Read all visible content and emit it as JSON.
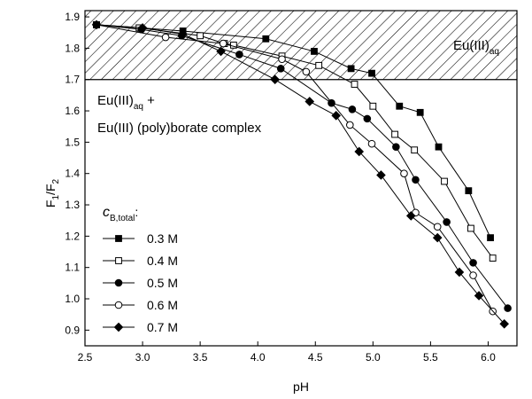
{
  "chart_data": {
    "type": "scatter",
    "title": "",
    "xlabel": "pH",
    "ylabel": {
      "main": "F",
      "sub1": "1",
      "slash": "/F",
      "sub2": "2"
    },
    "xlim": [
      2.5,
      6.25
    ],
    "ylim": [
      0.85,
      1.92
    ],
    "x_ticks": [
      2.5,
      3.0,
      3.5,
      4.0,
      4.5,
      5.0,
      5.5,
      6.0
    ],
    "x_tick_labels": [
      "2.5",
      "3.0",
      "3.5",
      "4.0",
      "4.5",
      "5.0",
      "5.5",
      "6.0"
    ],
    "y_ticks": [
      0.9,
      1.0,
      1.1,
      1.2,
      1.3,
      1.4,
      1.5,
      1.6,
      1.7,
      1.8,
      1.9
    ],
    "y_tick_labels": [
      "0.9",
      "1.0",
      "1.1",
      "1.2",
      "1.3",
      "1.4",
      "1.5",
      "1.6",
      "1.7",
      "1.8",
      "1.9"
    ],
    "grid": false,
    "regions": [
      {
        "name": "hatched-region",
        "y_from": 1.7,
        "y_to": 1.92,
        "fill": "hatched"
      }
    ],
    "region_labels": {
      "upper": {
        "main": "Eu(III)",
        "sub": "aq"
      },
      "lower_line1": {
        "main": "Eu(III)",
        "sub": "aq",
        "tail": " +"
      },
      "lower_line2": "Eu(III) (poly)borate complex"
    },
    "legend": {
      "title": {
        "main": "c",
        "sub": "B,total",
        "tail": ":"
      },
      "placement": "lower-left"
    },
    "series": [
      {
        "name": "0.3 M",
        "marker": "square-filled",
        "points": [
          [
            2.6,
            1.875
          ],
          [
            2.98,
            1.865
          ],
          [
            3.35,
            1.855
          ],
          [
            4.07,
            1.83
          ],
          [
            4.49,
            1.79
          ],
          [
            4.81,
            1.735
          ],
          [
            4.99,
            1.72
          ],
          [
            5.23,
            1.615
          ],
          [
            5.41,
            1.595
          ],
          [
            5.57,
            1.485
          ],
          [
            5.83,
            1.345
          ],
          [
            6.02,
            1.195
          ]
        ]
      },
      {
        "name": "0.4 M",
        "marker": "square-open",
        "points": [
          [
            2.6,
            1.875
          ],
          [
            2.97,
            1.865
          ],
          [
            3.5,
            1.84
          ],
          [
            3.71,
            1.815
          ],
          [
            3.79,
            1.81
          ],
          [
            4.21,
            1.775
          ],
          [
            4.53,
            1.745
          ],
          [
            4.84,
            1.685
          ],
          [
            5.0,
            1.615
          ],
          [
            5.19,
            1.525
          ],
          [
            5.36,
            1.475
          ],
          [
            5.62,
            1.375
          ],
          [
            5.85,
            1.225
          ],
          [
            6.04,
            1.13
          ]
        ]
      },
      {
        "name": "0.5 M",
        "marker": "circle-filled",
        "points": [
          [
            2.6,
            1.875
          ],
          [
            2.99,
            1.86
          ],
          [
            3.34,
            1.84
          ],
          [
            3.84,
            1.78
          ],
          [
            4.2,
            1.735
          ],
          [
            4.64,
            1.625
          ],
          [
            4.82,
            1.605
          ],
          [
            4.95,
            1.575
          ],
          [
            5.2,
            1.485
          ],
          [
            5.37,
            1.38
          ],
          [
            5.64,
            1.245
          ],
          [
            5.87,
            1.115
          ],
          [
            6.17,
            0.97
          ]
        ]
      },
      {
        "name": "0.6 M",
        "marker": "circle-open",
        "points": [
          [
            2.6,
            1.875
          ],
          [
            3.2,
            1.835
          ],
          [
            3.7,
            1.815
          ],
          [
            4.21,
            1.765
          ],
          [
            4.42,
            1.725
          ],
          [
            4.8,
            1.555
          ],
          [
            4.99,
            1.495
          ],
          [
            5.27,
            1.4
          ],
          [
            5.37,
            1.275
          ],
          [
            5.56,
            1.23
          ],
          [
            5.87,
            1.075
          ],
          [
            6.04,
            0.96
          ]
        ]
      },
      {
        "name": "0.7 M",
        "marker": "diamond-filled",
        "points": [
          [
            2.6,
            1.875
          ],
          [
            3.0,
            1.865
          ],
          [
            3.35,
            1.845
          ],
          [
            3.68,
            1.79
          ],
          [
            4.15,
            1.7
          ],
          [
            4.45,
            1.63
          ],
          [
            4.68,
            1.585
          ],
          [
            4.88,
            1.47
          ],
          [
            5.07,
            1.395
          ],
          [
            5.33,
            1.265
          ],
          [
            5.56,
            1.195
          ],
          [
            5.75,
            1.085
          ],
          [
            5.92,
            1.01
          ],
          [
            6.14,
            0.92
          ]
        ]
      }
    ]
  }
}
